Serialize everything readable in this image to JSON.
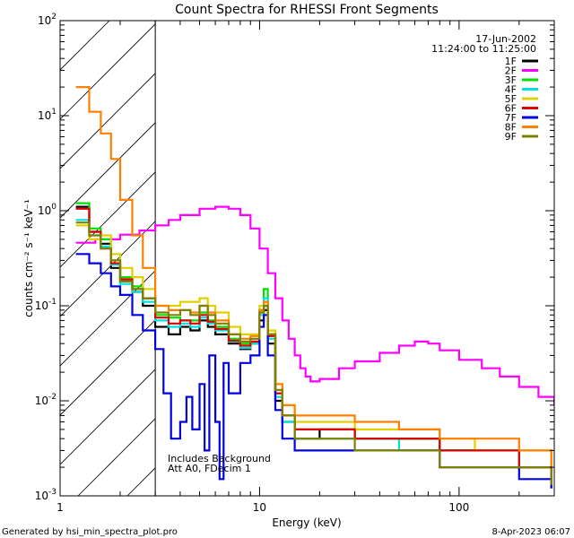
{
  "chart_data": {
    "type": "line",
    "title": "Count Spectra for RHESSI Front Segments",
    "xlabel": "Energy (keV)",
    "ylabel": "counts cm⁻² s⁻¹ keV⁻¹",
    "x_scale": "log",
    "y_scale": "log",
    "xlim": [
      1,
      300
    ],
    "ylim": [
      0.001,
      100
    ],
    "x_ticks": [
      {
        "value": 1,
        "label": "1"
      },
      {
        "value": 10,
        "label": "10"
      },
      {
        "value": 100,
        "label": "100"
      }
    ],
    "y_ticks": [
      {
        "value": 0.001,
        "base": "10",
        "exp": "-3"
      },
      {
        "value": 0.01,
        "base": "10",
        "exp": "-2"
      },
      {
        "value": 0.1,
        "base": "10",
        "exp": "-1"
      },
      {
        "value": 1,
        "base": "10",
        "exp": "0"
      },
      {
        "value": 10,
        "base": "10",
        "exp": "1"
      },
      {
        "value": 100,
        "base": "10",
        "exp": "2"
      }
    ],
    "shaded_region": {
      "x_from": 1,
      "x_to": 3,
      "style": "hatched"
    },
    "date": "17-Jun-2002",
    "time_range": "11:24:00 to 11:25:00",
    "annotations": [
      "Includes Background",
      "Att A0, FDecim 1"
    ],
    "series": [
      {
        "name": "1F",
        "color": "#000000",
        "x": [
          1.2,
          1.4,
          1.6,
          1.8,
          2.0,
          2.3,
          2.6,
          3.0,
          3.5,
          4.0,
          4.5,
          5.0,
          5.5,
          6.0,
          7.0,
          8.0,
          9.0,
          10.0,
          10.5,
          11.0,
          12.0,
          13.0,
          15.0,
          20.0,
          30.0,
          50.0,
          80.0,
          120.0,
          200.0,
          290.0
        ],
        "y": [
          1.1,
          0.6,
          0.45,
          0.25,
          0.18,
          0.14,
          0.1,
          0.06,
          0.05,
          0.06,
          0.055,
          0.07,
          0.06,
          0.05,
          0.04,
          0.035,
          0.04,
          0.07,
          0.09,
          0.04,
          0.01,
          0.006,
          0.004,
          0.005,
          0.004,
          0.004,
          0.003,
          0.003,
          0.002,
          0.0012
        ]
      },
      {
        "name": "2F",
        "color": "#ff00ff",
        "x": [
          1.2,
          1.5,
          2.0,
          2.5,
          3.0,
          3.5,
          4.0,
          5.0,
          6.0,
          7.0,
          8.0,
          9.0,
          10.0,
          11.0,
          12.0,
          13.0,
          14.0,
          15.0,
          16.0,
          17.0,
          18.0,
          20.0,
          25.0,
          30.0,
          40.0,
          50.0,
          60.0,
          70.0,
          80.0,
          100.0,
          130.0,
          160.0,
          200.0,
          250.0,
          300.0
        ],
        "y": [
          0.46,
          0.5,
          0.56,
          0.62,
          0.7,
          0.8,
          0.9,
          1.05,
          1.1,
          1.05,
          0.9,
          0.65,
          0.4,
          0.22,
          0.12,
          0.07,
          0.045,
          0.03,
          0.022,
          0.018,
          0.016,
          0.017,
          0.022,
          0.026,
          0.032,
          0.038,
          0.042,
          0.04,
          0.034,
          0.027,
          0.022,
          0.018,
          0.014,
          0.011,
          0.009
        ]
      },
      {
        "name": "3F",
        "color": "#00e000",
        "x": [
          1.2,
          1.4,
          1.6,
          1.8,
          2.0,
          2.3,
          2.6,
          3.0,
          3.5,
          4.0,
          4.5,
          5.0,
          5.5,
          6.0,
          7.0,
          8.0,
          9.0,
          10.0,
          10.5,
          11.0,
          12.0,
          13.0,
          15.0,
          20.0,
          30.0,
          50.0,
          80.0,
          120.0,
          200.0,
          290.0
        ],
        "y": [
          1.2,
          0.65,
          0.5,
          0.3,
          0.2,
          0.16,
          0.12,
          0.08,
          0.075,
          0.07,
          0.07,
          0.085,
          0.07,
          0.06,
          0.045,
          0.04,
          0.045,
          0.09,
          0.15,
          0.05,
          0.012,
          0.007,
          0.005,
          0.005,
          0.004,
          0.004,
          0.003,
          0.003,
          0.002,
          0.0015
        ]
      },
      {
        "name": "4F",
        "color": "#00e0e0",
        "x": [
          1.2,
          1.4,
          1.6,
          1.8,
          2.0,
          2.3,
          2.6,
          3.0,
          3.5,
          4.0,
          4.5,
          5.0,
          5.5,
          6.0,
          7.0,
          8.0,
          9.0,
          10.0,
          10.5,
          11.0,
          12.0,
          13.0,
          15.0,
          20.0,
          30.0,
          50.0,
          80.0,
          120.0,
          200.0,
          290.0
        ],
        "y": [
          0.8,
          0.55,
          0.42,
          0.27,
          0.17,
          0.14,
          0.11,
          0.07,
          0.06,
          0.065,
          0.06,
          0.075,
          0.065,
          0.055,
          0.042,
          0.036,
          0.04,
          0.08,
          0.12,
          0.045,
          0.011,
          0.006,
          0.004,
          0.004,
          0.004,
          0.003,
          0.003,
          0.003,
          0.002,
          0.0013
        ]
      },
      {
        "name": "5F",
        "color": "#e0d000",
        "x": [
          1.2,
          1.4,
          1.6,
          1.8,
          2.0,
          2.3,
          2.6,
          3.0,
          3.5,
          4.0,
          4.5,
          5.0,
          5.5,
          6.0,
          7.0,
          8.0,
          9.0,
          10.0,
          10.5,
          11.0,
          12.0,
          13.0,
          15.0,
          20.0,
          30.0,
          50.0,
          80.0,
          120.0,
          200.0,
          290.0
        ],
        "y": [
          0.7,
          0.5,
          0.55,
          0.35,
          0.25,
          0.2,
          0.15,
          0.1,
          0.1,
          0.11,
          0.11,
          0.12,
          0.1,
          0.085,
          0.06,
          0.05,
          0.05,
          0.1,
          0.11,
          0.055,
          0.015,
          0.009,
          0.006,
          0.006,
          0.005,
          0.005,
          0.004,
          0.003,
          0.003,
          0.0018
        ]
      },
      {
        "name": "6F",
        "color": "#e00000",
        "x": [
          1.2,
          1.4,
          1.6,
          1.8,
          2.0,
          2.3,
          2.6,
          3.0,
          3.5,
          4.0,
          4.5,
          5.0,
          5.5,
          6.0,
          7.0,
          8.0,
          9.0,
          10.0,
          10.5,
          11.0,
          12.0,
          13.0,
          15.0,
          20.0,
          30.0,
          50.0,
          80.0,
          120.0,
          200.0,
          290.0
        ],
        "y": [
          1.05,
          0.6,
          0.4,
          0.28,
          0.19,
          0.15,
          0.12,
          0.075,
          0.065,
          0.07,
          0.065,
          0.08,
          0.068,
          0.057,
          0.043,
          0.038,
          0.042,
          0.085,
          0.1,
          0.048,
          0.012,
          0.007,
          0.005,
          0.005,
          0.004,
          0.004,
          0.003,
          0.003,
          0.002,
          0.0014
        ]
      },
      {
        "name": "7F",
        "color": "#0000e0",
        "x": [
          1.2,
          1.4,
          1.6,
          1.8,
          2.0,
          2.3,
          2.6,
          3.0,
          3.3,
          3.6,
          4.0,
          4.3,
          4.6,
          5.0,
          5.3,
          5.6,
          6.0,
          6.3,
          6.6,
          7.0,
          8.0,
          9.0,
          10.0,
          10.5,
          11.0,
          12.0,
          13.0,
          15.0,
          20.0,
          30.0,
          50.0,
          80.0,
          120.0,
          200.0,
          290.0
        ],
        "y": [
          0.35,
          0.28,
          0.22,
          0.16,
          0.13,
          0.08,
          0.055,
          0.035,
          0.012,
          0.004,
          0.006,
          0.011,
          0.005,
          0.015,
          0.003,
          0.03,
          0.006,
          0.0015,
          0.025,
          0.012,
          0.025,
          0.03,
          0.06,
          0.08,
          0.03,
          0.008,
          0.004,
          0.003,
          0.003,
          0.003,
          0.003,
          0.002,
          0.002,
          0.0015,
          0.0012
        ]
      },
      {
        "name": "8F",
        "color": "#ff8000",
        "x": [
          1.2,
          1.4,
          1.6,
          1.8,
          2.0,
          2.3,
          2.6,
          3.0,
          3.5,
          4.0,
          4.5,
          5.0,
          5.5,
          6.0,
          7.0,
          8.0,
          9.0,
          10.0,
          10.5,
          11.0,
          12.0,
          13.0,
          15.0,
          20.0,
          30.0,
          50.0,
          80.0,
          120.0,
          200.0,
          290.0
        ],
        "y": [
          20,
          11,
          6.5,
          3.5,
          1.3,
          0.55,
          0.25,
          0.1,
          0.09,
          0.09,
          0.085,
          0.1,
          0.085,
          0.07,
          0.05,
          0.045,
          0.048,
          0.09,
          0.11,
          0.05,
          0.015,
          0.009,
          0.007,
          0.007,
          0.006,
          0.005,
          0.004,
          0.004,
          0.003,
          0.002
        ]
      },
      {
        "name": "9F",
        "color": "#808000",
        "x": [
          1.2,
          1.4,
          1.6,
          1.8,
          2.0,
          2.3,
          2.6,
          3.0,
          3.5,
          4.0,
          4.5,
          5.0,
          5.5,
          6.0,
          7.0,
          8.0,
          9.0,
          10.0,
          10.5,
          11.0,
          12.0,
          13.0,
          15.0,
          20.0,
          30.0,
          50.0,
          80.0,
          120.0,
          200.0,
          290.0
        ],
        "y": [
          0.75,
          0.55,
          0.4,
          0.3,
          0.18,
          0.15,
          0.12,
          0.085,
          0.08,
          0.09,
          0.08,
          0.1,
          0.08,
          0.065,
          0.05,
          0.042,
          0.045,
          0.085,
          0.1,
          0.05,
          0.013,
          0.007,
          0.004,
          0.004,
          0.003,
          0.003,
          0.002,
          0.002,
          0.002,
          0.0013
        ]
      }
    ]
  },
  "footer": {
    "generator": "Generated by hsi_min_spectra_plot.pro",
    "timestamp": "8-Apr-2023 06:07"
  }
}
